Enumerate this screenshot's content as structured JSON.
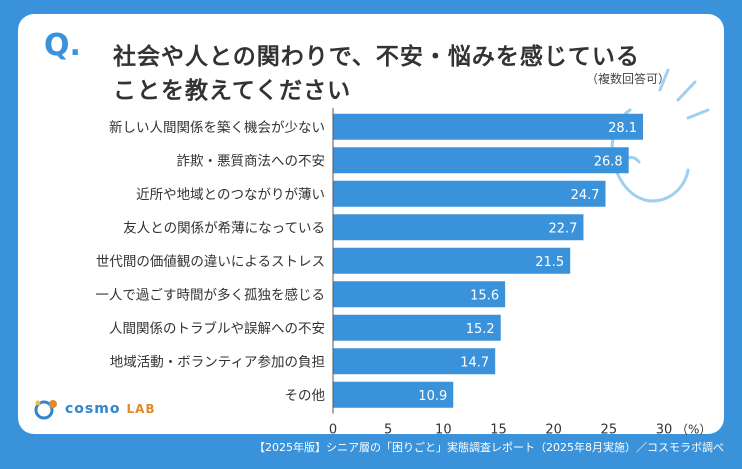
{
  "header": {
    "q_mark": "Q.",
    "title_line1": "社会や人との関わりで、不安・悩みを感じている",
    "title_line2": "ことを教えてください",
    "note": "（複数回答可）"
  },
  "logo": {
    "text": "cosmo",
    "sub": "LAB"
  },
  "footer": {
    "text": "【2025年版】シニア層の「困りごと」実態調査レポート（2025年8月実施）／コスモラボ調べ"
  },
  "colors": {
    "bar": "#3a93da",
    "background": "#3a93da",
    "text": "#333333"
  },
  "chart_data": {
    "type": "bar",
    "orientation": "horizontal",
    "title": "社会や人との関わりで、不安・悩みを感じていることを教えてください",
    "categories": [
      "新しい人間関係を築く機会が少ない",
      "詐欺・悪質商法への不安",
      "近所や地域とのつながりが薄い",
      "友人との関係が希薄になっている",
      "世代間の価値観の違いによるストレス",
      "一人で過ごす時間が多く孤独を感じる",
      "人間関係のトラブルや誤解への不安",
      "地域活動・ボランティア参加の負担",
      "その他"
    ],
    "values": [
      28.1,
      26.8,
      24.7,
      22.7,
      21.5,
      15.6,
      15.2,
      14.7,
      10.9
    ],
    "value_labels": [
      "28.1",
      "26.8",
      "24.7",
      "22.7",
      "21.5",
      "15.6",
      "15.2",
      "14.7",
      "10.9"
    ],
    "xlim": [
      0,
      30
    ],
    "xticks": [
      "0",
      "5",
      "10",
      "15",
      "20",
      "25",
      "30"
    ],
    "unit_label": "（%）",
    "xlabel": "",
    "ylabel": ""
  }
}
